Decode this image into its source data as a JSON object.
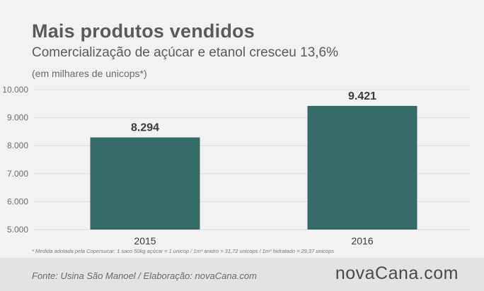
{
  "header": {
    "title": "Mais produtos vendidos",
    "subtitle": "Comercialização de açúcar e etanol cresceu 13,6%",
    "units": "(em milhares de unicops*)"
  },
  "footnote": "* Medida adotada pela Copersucar: 1 saco 50kg açúcar = 1 unicop / 1m³ anidro = 31,72 unicops / 1m³ hidratado = 29,37 unicops",
  "footer": {
    "source": "Fonte: Usina São Manoel / Elaboração: novaCana.com",
    "logo_main": "novaCana",
    "logo_dot": ".",
    "logo_suffix": "com"
  },
  "colors": {
    "bar": "#356b66",
    "grid": "#dcdcdc",
    "background": "#f2f2f2",
    "footer_bg": "#e3e3e3",
    "logo_accent": "#3a8a3a"
  },
  "chart_data": {
    "type": "bar",
    "categories": [
      "2015",
      "2016"
    ],
    "values": [
      8294,
      9421
    ],
    "value_labels": [
      "8.294",
      "9.421"
    ],
    "yticks": [
      5000,
      6000,
      7000,
      8000,
      9000,
      10000
    ],
    "ytick_labels": [
      "5.000",
      "6.000",
      "7.000",
      "8.000",
      "9.000",
      "10.000"
    ],
    "ylim": [
      5000,
      10000
    ],
    "title": "Mais produtos vendidos",
    "xlabel": "",
    "ylabel": "",
    "grid": true
  }
}
